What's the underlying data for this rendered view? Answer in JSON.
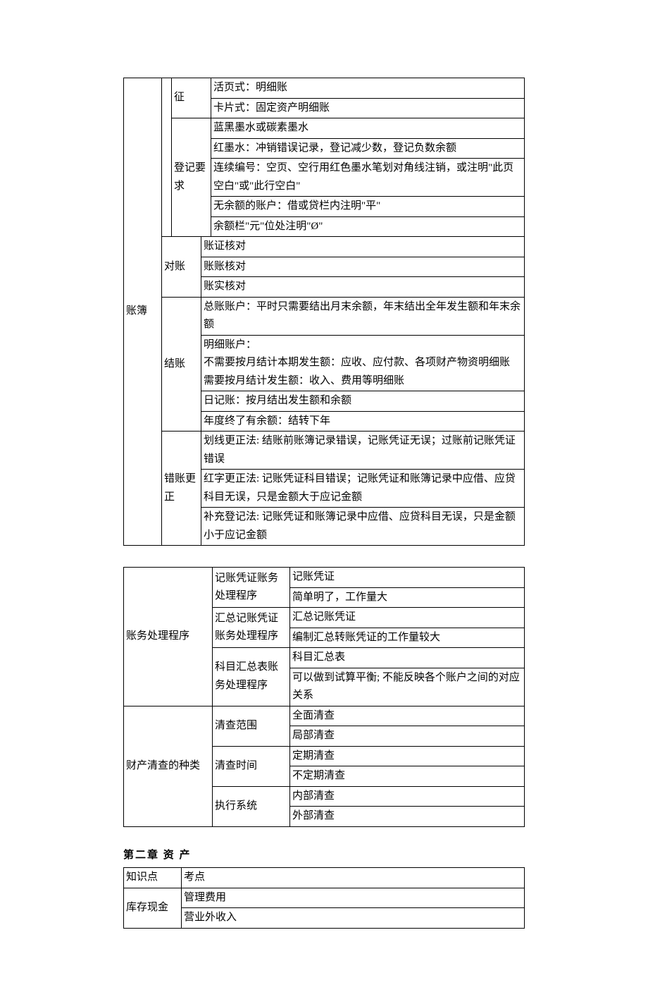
{
  "table1": {
    "col1_label": "账簿",
    "row1_c3": "征",
    "row1_c4": "活页式：明细账",
    "row2_c4": "卡片式：固定资产明细账",
    "row3_c3": "登记要求",
    "row3_c4": "蓝黑墨水或碳素墨水",
    "row4_c4": "红墨水：冲销错误记录，登记减少数，登记负数余额",
    "row5_c4": "连续编号：空页、空行用红色墨水笔划对角线注销，或注明\"此页空白\"或\"此行空白\"",
    "row6_c4": "无余额的账户：借或贷栏内注明\"平\"",
    "row7_c4": "余额栏\"元\"位处注明\"Ø\"",
    "row8_c2": "对账",
    "row8_c3": "账证核对",
    "row9_c3": "账账核对",
    "row10_c3": "账实核对",
    "row11_c2": "结账",
    "row11_c3": "总账账户：平时只需要结出月末余额，年末结出全年发生额和年末余额",
    "row12_c3": "明细账户：\n不需要按月结计本期发生额：应收、应付款、各项财产物资明细账\n需要按月结计发生额：收入、费用等明细账",
    "row13_c3": "日记账：按月结出发生额和余额",
    "row14_c3": "年度终了有余额：结转下年",
    "row15_c2": "错账更正",
    "row15_c3": "划线更正法: 结账前账簿记录错误，记账凭证无误；过账前记账凭证错误",
    "row16_c3": "红字更正法: 记账凭证科目错误；记账凭证和账簿记录中应借、应贷科目无误，只是金额大于应记金额",
    "row17_c3": "补充登记法: 记账凭证和账簿记录中应借、应贷科目无误，只是金额小于应记金额"
  },
  "table2": {
    "section1_label": "账务处理程序",
    "r1_c2": "记账凭证账务处理程序",
    "r1_c3": "记账凭证",
    "r2_c3": "简单明了，工作量大",
    "r3_c2": "汇总记账凭证账务处理程序",
    "r3_c3": "汇总记账凭证",
    "r4_c3": "编制汇总转账凭证的工作量较大",
    "r5_c2": "科目汇总表账务处理程序",
    "r5_c3": "科目汇总表",
    "r6_c3": "可以做到试算平衡; 不能反映各个账户之间的对应关系",
    "section2_label": "财产清查的种类",
    "r7_c2": "清查范围",
    "r7_c3": "全面清查",
    "r8_c3": "局部清查",
    "r9_c2": "清查时间",
    "r9_c3": "定期清查",
    "r10_c3": "不定期清查",
    "r11_c2": "执行系统",
    "r11_c3": "内部清查",
    "r12_c3": "外部清查"
  },
  "chapter_title": "第二章    资    产",
  "table3": {
    "header_c1": "知识点",
    "header_c2": "考点",
    "r1_c1": "库存现金",
    "r1_c2": "管理费用",
    "r2_c2": "营业外收入"
  }
}
